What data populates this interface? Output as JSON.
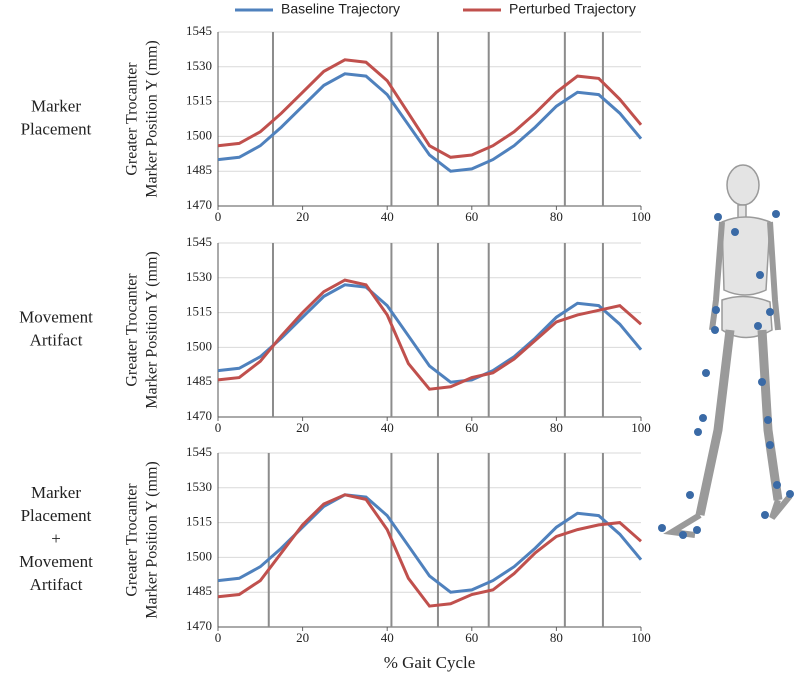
{
  "chart_data": [
    {
      "type": "line",
      "row_label": [
        "Marker",
        "Placement"
      ],
      "ylabel": [
        "Greater Trocanter",
        "Marker Position Y (mm)"
      ],
      "x": [
        0,
        5,
        10,
        15,
        20,
        25,
        30,
        35,
        40,
        45,
        50,
        55,
        60,
        65,
        70,
        75,
        80,
        85,
        90,
        95,
        100
      ],
      "series": [
        {
          "name": "Baseline Trajectory",
          "color": "#4f81bd",
          "values": [
            1490,
            1491,
            1496,
            1504,
            1513,
            1522,
            1527,
            1526,
            1518,
            1505,
            1492,
            1485,
            1486,
            1490,
            1496,
            1504,
            1513,
            1519,
            1518,
            1510,
            1499
          ]
        },
        {
          "name": "Perturbed Trajectory",
          "color": "#c0504d",
          "values": [
            1496,
            1497,
            1502,
            1510,
            1519,
            1528,
            1533,
            1532,
            1524,
            1510,
            1496,
            1491,
            1492,
            1496,
            1502,
            1510,
            1519,
            1526,
            1525,
            1516,
            1505
          ]
        }
      ],
      "vlines": [
        13,
        41,
        52,
        64,
        82,
        91
      ],
      "xlim": [
        0,
        100
      ],
      "xticks": [
        0,
        20,
        40,
        60,
        80,
        100
      ],
      "ylim": [
        1470,
        1545
      ],
      "yticks": [
        1470,
        1485,
        1500,
        1515,
        1530,
        1545
      ],
      "grid": true
    },
    {
      "type": "line",
      "row_label": [
        "Movement",
        "Artifact"
      ],
      "ylabel": [
        "Greater Trocanter",
        "Marker Position Y (mm)"
      ],
      "x": [
        0,
        5,
        10,
        15,
        20,
        25,
        30,
        35,
        40,
        45,
        50,
        55,
        60,
        65,
        70,
        75,
        80,
        85,
        90,
        95,
        100
      ],
      "series": [
        {
          "color": "#4f81bd",
          "values": [
            1490,
            1491,
            1496,
            1504,
            1513,
            1522,
            1527,
            1526,
            1518,
            1505,
            1492,
            1485,
            1486,
            1490,
            1496,
            1504,
            1513,
            1519,
            1518,
            1510,
            1499
          ]
        },
        {
          "color": "#c0504d",
          "values": [
            1486,
            1487,
            1494,
            1505,
            1515,
            1524,
            1529,
            1527,
            1514,
            1493,
            1482,
            1483,
            1487,
            1489,
            1495,
            1503,
            1511,
            1514,
            1516,
            1518,
            1510
          ]
        }
      ],
      "vlines": [
        13,
        41,
        52,
        64,
        82,
        91
      ],
      "xlim": [
        0,
        100
      ],
      "xticks": [
        0,
        20,
        40,
        60,
        80,
        100
      ],
      "ylim": [
        1470,
        1545
      ],
      "yticks": [
        1470,
        1485,
        1500,
        1515,
        1530,
        1545
      ],
      "grid": true
    },
    {
      "type": "line",
      "row_label": [
        "Marker",
        "Placement",
        "+",
        "Movement",
        "Artifact"
      ],
      "ylabel": [
        "Greater Trocanter",
        "Marker Position Y (mm)"
      ],
      "xlabel": "% Gait Cycle",
      "x": [
        0,
        5,
        10,
        15,
        20,
        25,
        30,
        35,
        40,
        45,
        50,
        55,
        60,
        65,
        70,
        75,
        80,
        85,
        90,
        95,
        100
      ],
      "series": [
        {
          "color": "#4f81bd",
          "values": [
            1490,
            1491,
            1496,
            1504,
            1513,
            1522,
            1527,
            1526,
            1518,
            1505,
            1492,
            1485,
            1486,
            1490,
            1496,
            1504,
            1513,
            1519,
            1518,
            1510,
            1499
          ]
        },
        {
          "color": "#c0504d",
          "values": [
            1483,
            1484,
            1490,
            1502,
            1514,
            1523,
            1527,
            1525,
            1512,
            1491,
            1479,
            1480,
            1484,
            1486,
            1493,
            1502,
            1509,
            1512,
            1514,
            1515,
            1507
          ]
        }
      ],
      "vlines": [
        12,
        41,
        52,
        64,
        82,
        91
      ],
      "xlim": [
        0,
        100
      ],
      "xticks": [
        0,
        20,
        40,
        60,
        80,
        100
      ],
      "ylim": [
        1470,
        1545
      ],
      "yticks": [
        1470,
        1485,
        1500,
        1515,
        1530,
        1545
      ],
      "grid": true
    }
  ]
}
